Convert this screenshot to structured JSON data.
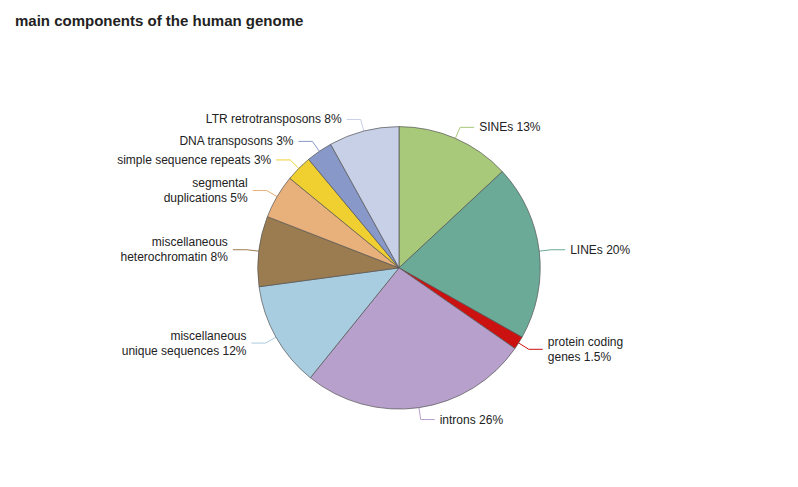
{
  "chart_data": {
    "type": "pie",
    "title": "main components of the human genome",
    "categories": [
      "SINEs 13%",
      "LINEs 20%",
      "protein coding\ngenes 1.5%",
      "introns 26%",
      "miscellaneous\nunique sequences 12%",
      "miscellaneous\nheterochromatin 8%",
      "segmental\nduplications 5%",
      "simple sequence repeats 3%",
      "DNA transposons 3%",
      "LTR retrotransposons 8%"
    ],
    "values": [
      13,
      20,
      1.5,
      26,
      12,
      8,
      5,
      3,
      3,
      8
    ],
    "colors": [
      "#a8c87a",
      "#6aaa96",
      "#cc1111",
      "#b8a0cc",
      "#a8cce0",
      "#9b7b50",
      "#e8b07a",
      "#f0d030",
      "#8898c8",
      "#c8d0e8"
    ],
    "data_labels": true
  }
}
